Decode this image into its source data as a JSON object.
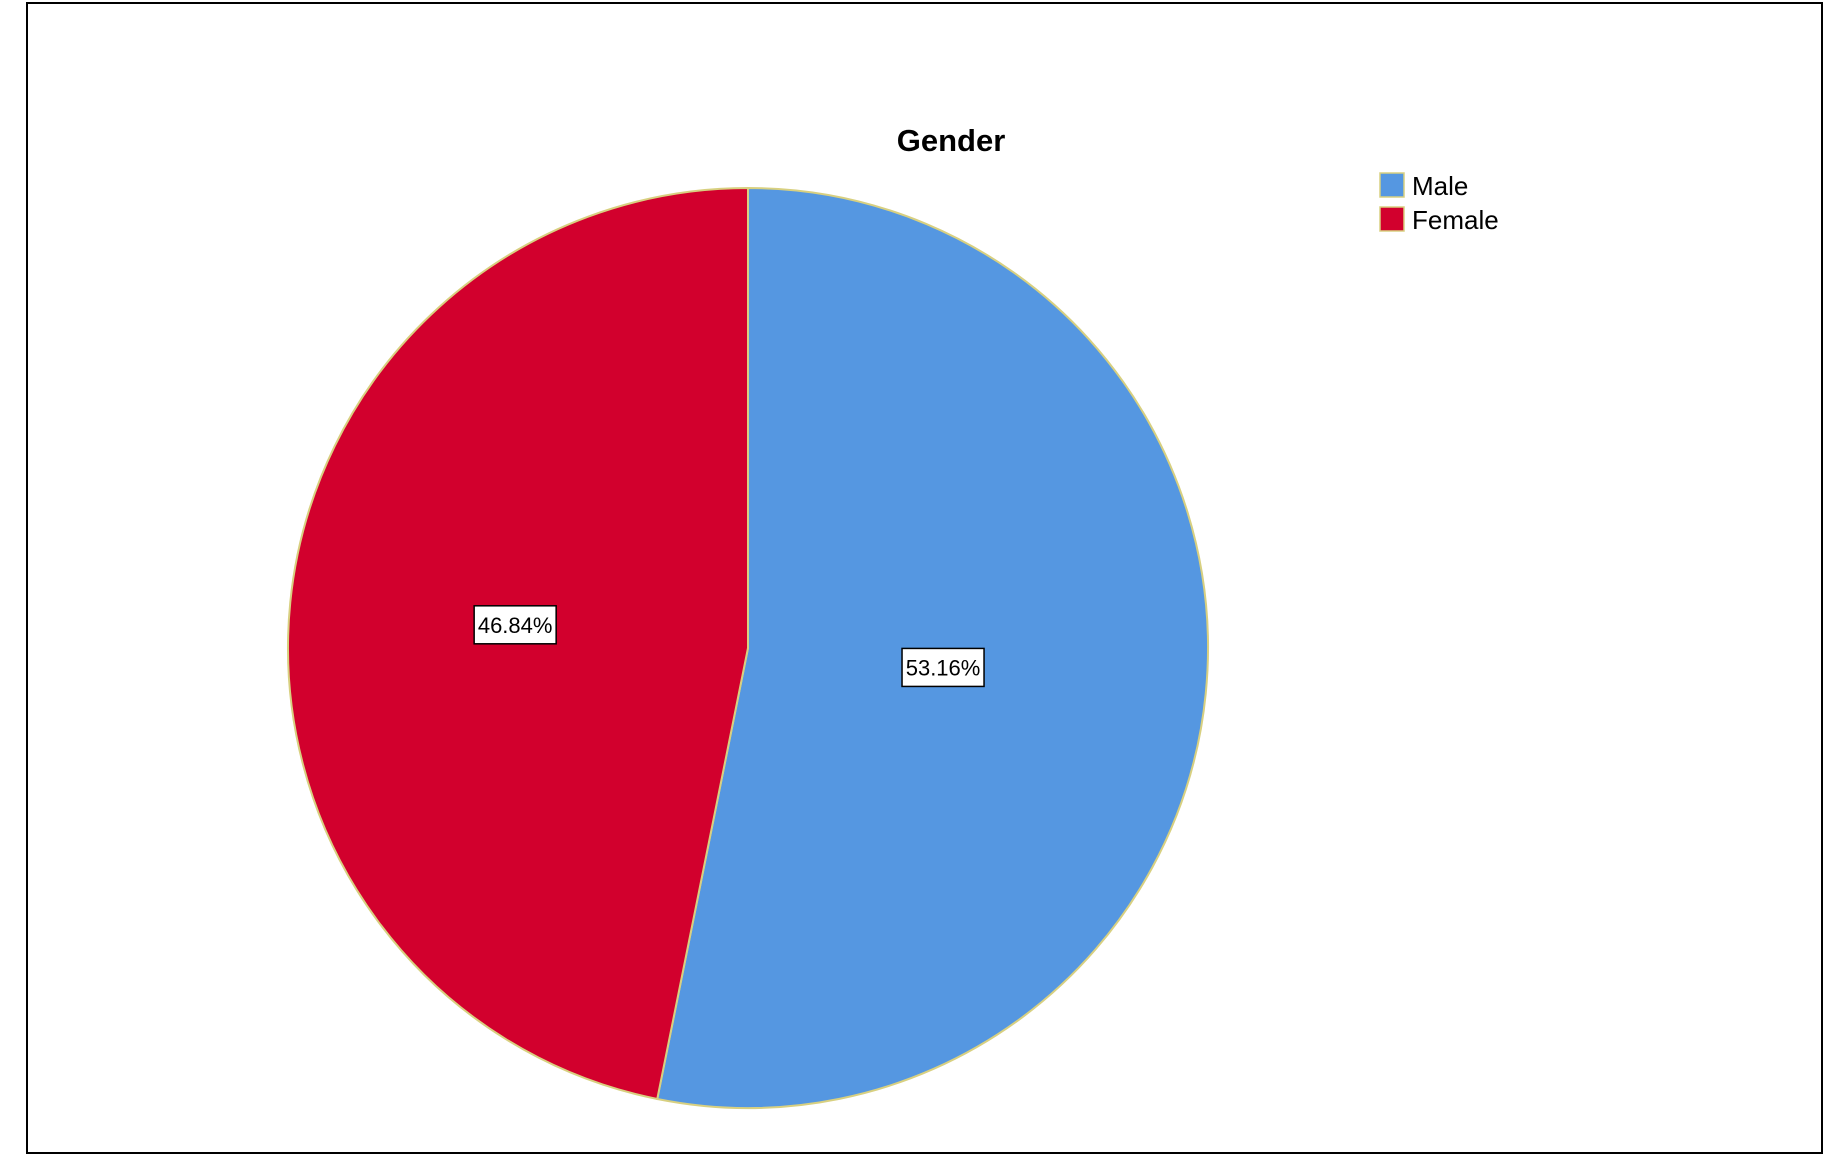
{
  "chart_data": {
    "type": "pie",
    "title": "Gender",
    "slices": [
      {
        "name": "Male",
        "value": 53.16,
        "label": "53.16%",
        "color": "#5597E1"
      },
      {
        "name": "Female",
        "value": 46.84,
        "label": "46.84%",
        "color": "#D2002D"
      }
    ],
    "start_angle_deg": 0,
    "direction": "clockwise",
    "slice_border_color": "#D8D080",
    "legend": {
      "placement": "top-right",
      "entries": [
        "Male",
        "Female"
      ]
    }
  }
}
